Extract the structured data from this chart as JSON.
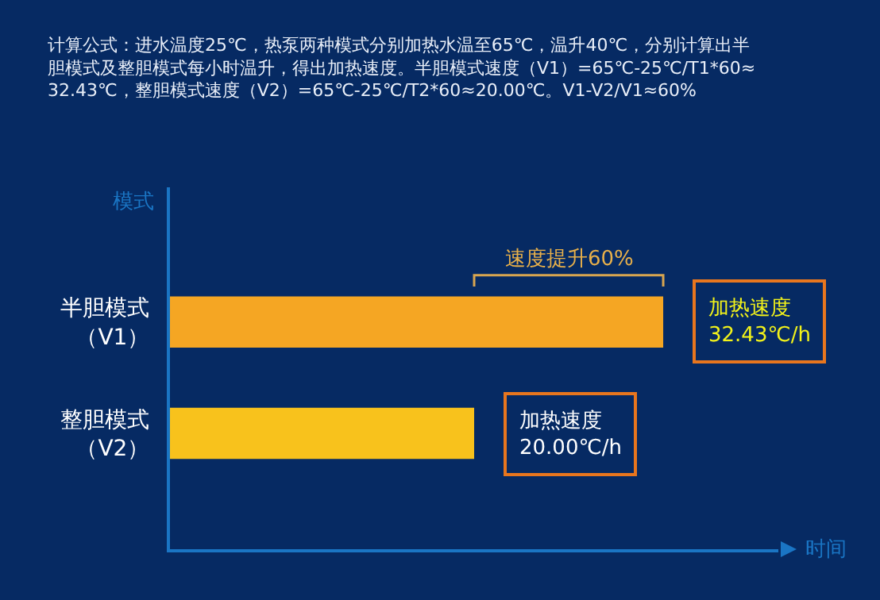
{
  "chart_data": {
    "type": "bar",
    "orientation": "horizontal",
    "title": "计算公式：进水温度25℃，热泵两种模式分别加热水温至65℃，温升40℃，分别计算出半胆模式及整胆模式每小时温升，得出加热速度。半胆模式速度（V1）=65℃-25℃/T1*60≈32.43℃，整胆模式速度（V2）=65℃-25℃/T2*60≈20.00℃。V1-V2/V1≈60%",
    "xlabel": "时间",
    "ylabel": "模式",
    "categories": [
      "半胆模式（V1）",
      "整胆模式（V2）"
    ],
    "values": [
      32.43,
      20.0
    ],
    "colors": [
      "#f5a623",
      "#f8c21c"
    ],
    "value_labels": [
      "加热速度\n32.43℃/h",
      "加热速度\n20.00℃/h"
    ],
    "xlim": [
      0,
      40
    ],
    "tick_labels": "y",
    "grid": false,
    "legend": false,
    "annotations": [
      "速度提升60%"
    ]
  }
}
